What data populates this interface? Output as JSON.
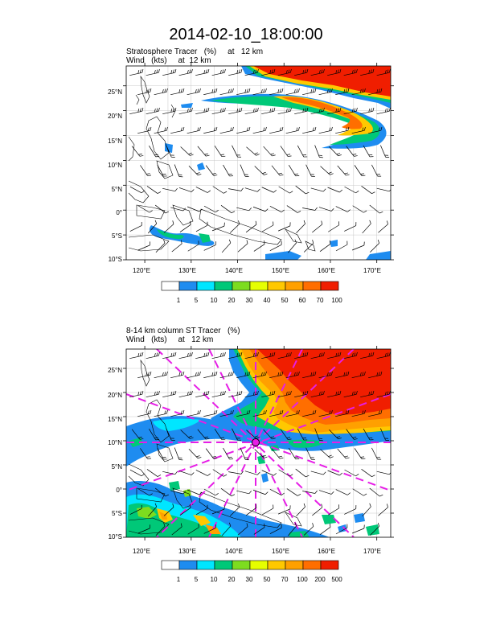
{
  "title": "2014-02-10_18:00:00",
  "panels": [
    {
      "id": "top",
      "subtitle_line1": "Stratosphere Tracer   (%)     at   12 km",
      "subtitle_line2": "Wind   (kts)     at  12 km",
      "lat_labels": [
        "25°N",
        "20°N",
        "15°N",
        "10°N",
        "5°N",
        "0°",
        "5°S",
        "10°S"
      ],
      "lon_labels": [
        "120°E",
        "130°E",
        "140°E",
        "150°E",
        "160°E",
        "170°E"
      ],
      "colorbar_labels": [
        "1",
        "5",
        "10",
        "20",
        "30",
        "40",
        "50",
        "60",
        "70",
        "100"
      ]
    },
    {
      "id": "bottom",
      "subtitle_line1": "8-14 km column ST Tracer   (%)",
      "subtitle_line2": "Wind   (kts)     at   12 km",
      "lat_labels": [
        "25°N",
        "20°N",
        "15°N",
        "10°N",
        "5°N",
        "0°",
        "5°S",
        "10°S"
      ],
      "lon_labels": [
        "120°E",
        "130°E",
        "140°E",
        "150°E",
        "160°E",
        "170°E"
      ],
      "colorbar_labels": [
        "1",
        "5",
        "10",
        "20",
        "30",
        "50",
        "70",
        "100",
        "200",
        "500"
      ]
    }
  ],
  "map_data": {
    "lat_range": [
      -10,
      29
    ],
    "lon_range": [
      116,
      173
    ],
    "lat_ticks": [
      25,
      20,
      15,
      10,
      5,
      0,
      -5,
      -10
    ],
    "lon_ticks": [
      120,
      130,
      140,
      150,
      160,
      170
    ],
    "colorbar_colors": [
      "#ffffff",
      "#1e8cf0",
      "#00e6ff",
      "#00c878",
      "#7ddc1f",
      "#e6ff00",
      "#ffc800",
      "#ffa000",
      "#ff6e00",
      "#f01e00"
    ],
    "grid_color": "#c8c8c8",
    "storm_center": {
      "lon": 145.5,
      "lat": 10
    }
  }
}
